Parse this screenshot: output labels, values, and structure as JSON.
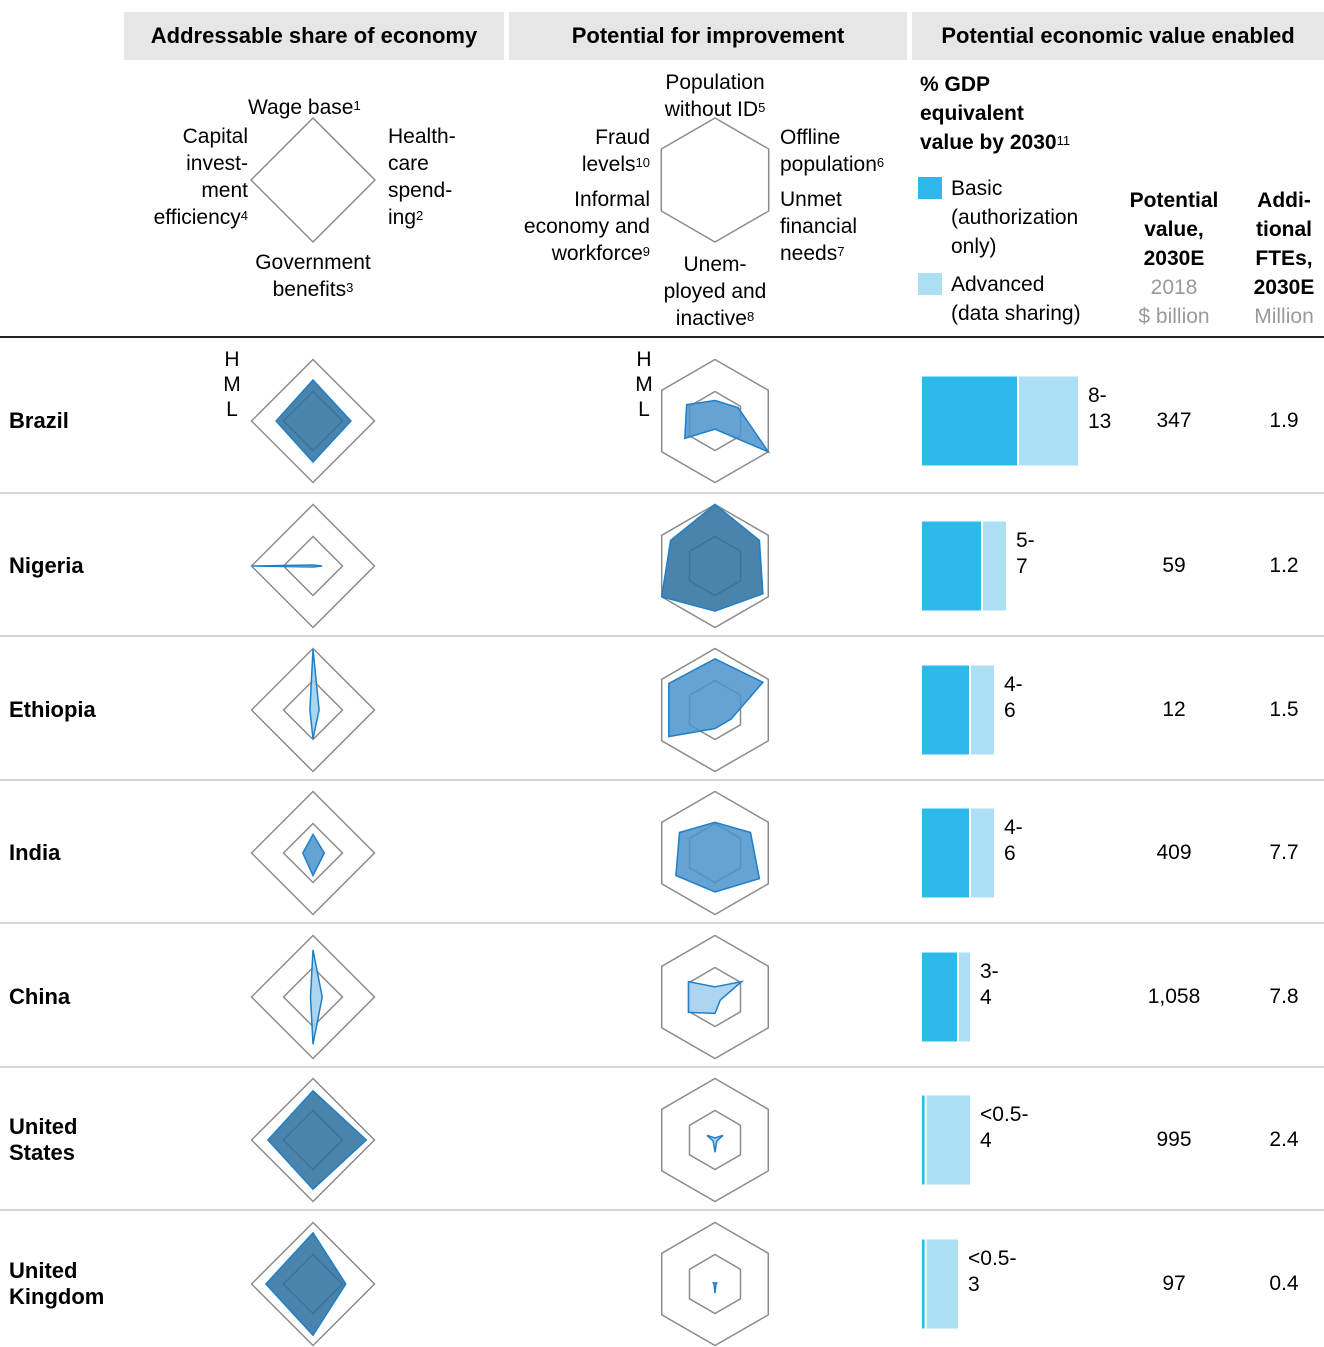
{
  "headers": {
    "addressable": "Addressable share of economy",
    "potential": "Potential for improvement",
    "economic": "Potential economic value enabled"
  },
  "addressable_axes": {
    "top": "Wage base",
    "top_note": "1",
    "right": [
      "Health-",
      "care",
      "spend-",
      "ing"
    ],
    "right_note": "2",
    "bottom": [
      "Government",
      "benefits"
    ],
    "bottom_note": "3",
    "left": [
      "Capital",
      "invest-",
      "ment",
      "efficiency"
    ],
    "left_note": "4"
  },
  "improvement_axes": {
    "top": [
      "Population",
      "without ID"
    ],
    "top_note": "5",
    "upper_right": [
      "Offline",
      "population"
    ],
    "upper_right_note": "6",
    "lower_right": [
      "Unmet",
      "financial",
      "needs"
    ],
    "lower_right_note": "7",
    "bottom": [
      "Unem-",
      "ployed and",
      "inactive"
    ],
    "bottom_note": "8",
    "lower_left": [
      "Informal",
      "economy and",
      "workforce"
    ],
    "lower_left_note": "9",
    "upper_left": [
      "Fraud",
      "levels"
    ],
    "upper_left_note": "10"
  },
  "value_legend": {
    "title": [
      "% GDP",
      "equivalent",
      "value by 2030"
    ],
    "title_note": "11",
    "basic": [
      "Basic",
      "(authorization",
      "only)"
    ],
    "advanced": [
      "Advanced",
      "(data sharing)"
    ],
    "basic_color": "#2fb8ea",
    "advanced_color": "#addff4"
  },
  "columns": {
    "potential_value": [
      "Potential",
      "value,",
      "2030E"
    ],
    "potential_value_unit": [
      "2018",
      "$ billion"
    ],
    "ftes": [
      "Addi-",
      "tional",
      "FTEs,",
      "2030E"
    ],
    "ftes_unit": "Million"
  },
  "scale_labels": [
    "H",
    "M",
    "L"
  ],
  "colors": {
    "polygon_dark": "#2a6f9e",
    "polygon_mid": "#4a93cc",
    "polygon_light": "#9fcdee",
    "grid": "#8c8c8c"
  },
  "chart_data": {
    "type": "radar+bar+table",
    "addressable_axes_order": [
      "Wage base",
      "Healthcare spending",
      "Government benefits",
      "Capital investment efficiency"
    ],
    "improvement_axes_order": [
      "Population without ID",
      "Offline population",
      "Unmet financial needs",
      "Unemployed and inactive",
      "Informal economy and workforce",
      "Fraud levels"
    ],
    "scale_levels": {
      "L": 1,
      "M": 2,
      "H": 3
    },
    "rows": [
      {
        "country": [
          "Brazil"
        ],
        "addressable": [
          2.0,
          1.85,
          2.0,
          1.8
        ],
        "addressable_fill": "dark",
        "improvement": [
          1.0,
          1.3,
          3.0,
          0.4,
          1.7,
          1.6
        ],
        "improvement_fill": "mid",
        "basic_pct": 8,
        "advanced_pct": 13,
        "range_label": [
          "8-",
          "13"
        ],
        "potential_value": "347",
        "ftes": "1.9"
      },
      {
        "country": [
          "Nigeria"
        ],
        "addressable": [
          0.05,
          0.45,
          0.05,
          2.95
        ],
        "addressable_fill": "light",
        "improvement": [
          3.0,
          2.5,
          2.7,
          2.2,
          3.0,
          2.5
        ],
        "improvement_fill": "dark",
        "basic_pct": 5,
        "advanced_pct": 7,
        "range_label": [
          "5-",
          "7"
        ],
        "potential_value": "59",
        "ftes": "1.2"
      },
      {
        "country": [
          "Ethiopia"
        ],
        "addressable": [
          2.95,
          0.3,
          1.4,
          0.15
        ],
        "addressable_fill": "light",
        "improvement": [
          2.5,
          2.7,
          0.9,
          0.9,
          2.6,
          2.6
        ],
        "improvement_fill": "mid",
        "basic_pct": 4,
        "advanced_pct": 6,
        "range_label": [
          "4-",
          "6"
        ],
        "potential_value": "12",
        "ftes": "1.5"
      },
      {
        "country": [
          "India"
        ],
        "addressable": [
          0.9,
          0.55,
          1.1,
          0.5
        ],
        "addressable_fill": "mid",
        "improvement": [
          1.5,
          2.0,
          2.5,
          1.9,
          2.2,
          2.0
        ],
        "improvement_fill": "mid",
        "basic_pct": 4,
        "advanced_pct": 6,
        "range_label": [
          "4-",
          "6"
        ],
        "potential_value": "409",
        "ftes": "7.7"
      },
      {
        "country": [
          "China"
        ],
        "addressable": [
          2.3,
          0.45,
          2.3,
          0.12
        ],
        "addressable_fill": "light",
        "improvement": [
          0.5,
          1.5,
          0.3,
          0.8,
          1.5,
          1.5
        ],
        "improvement_fill": "light",
        "basic_pct": 3,
        "advanced_pct": 4,
        "range_label": [
          "3-",
          "4"
        ],
        "potential_value": "1,058",
        "ftes": "7.8"
      },
      {
        "country": [
          "United",
          "States"
        ],
        "addressable": [
          2.4,
          2.6,
          2.4,
          2.2
        ],
        "addressable_fill": "dark",
        "improvement": [
          0.1,
          0.45,
          0.1,
          0.6,
          0.1,
          0.45
        ],
        "improvement_fill": "light",
        "basic_pct": 0.3,
        "advanced_pct": 4,
        "range_label": [
          "<0.5-",
          "4"
        ],
        "potential_value": "995",
        "ftes": "2.4"
      },
      {
        "country": [
          "United",
          "Kingdom"
        ],
        "addressable": [
          2.5,
          1.6,
          2.5,
          2.3
        ],
        "addressable_fill": "dark",
        "improvement": [
          0.05,
          0.1,
          0.05,
          0.45,
          0.05,
          0.1
        ],
        "improvement_fill": "light",
        "basic_pct": 0.3,
        "advanced_pct": 3,
        "range_label": [
          "<0.5-",
          "3"
        ],
        "potential_value": "97",
        "ftes": "0.4"
      }
    ]
  }
}
